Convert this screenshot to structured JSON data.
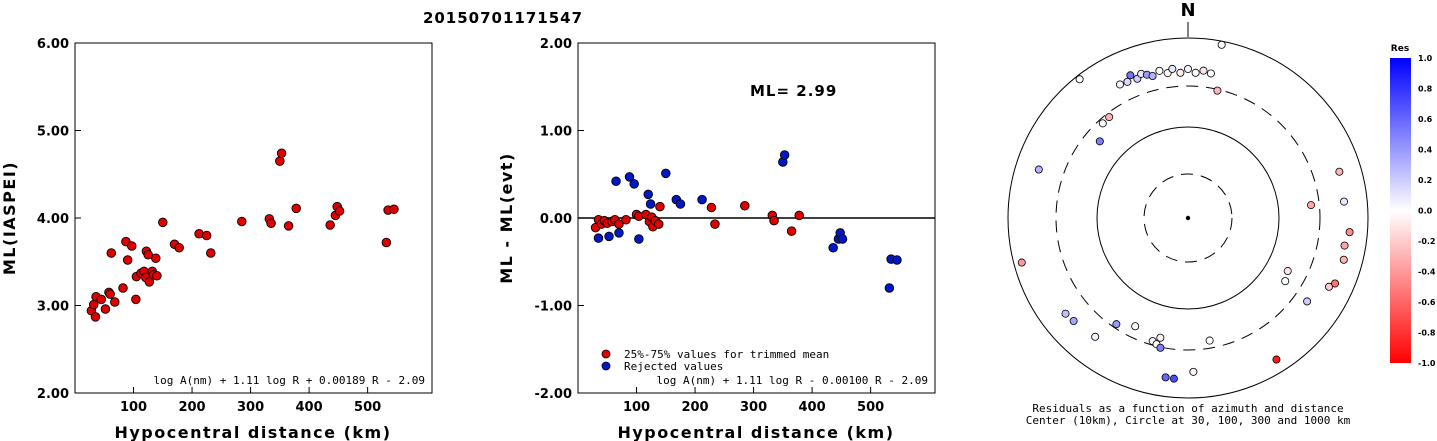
{
  "page": {
    "title": "20150701171547"
  },
  "colors": {
    "accepted": "#e00000",
    "rejected": "#0018c8"
  },
  "chart_data": [
    {
      "type": "scatter",
      "title": "",
      "xlabel": "Hypocentral distance (km)",
      "ylabel": "ML(IASPEI)",
      "xlim": [
        0,
        610
      ],
      "ylim": [
        2.0,
        6.0
      ],
      "xticks": [
        "100",
        "200",
        "300",
        "400",
        "500"
      ],
      "yticks": [
        "2.00",
        "3.00",
        "4.00",
        "5.00",
        "6.00"
      ],
      "annotation": "log A(nm) + 1.11 log R + 0.00189 R - 2.09",
      "points": [
        [
          28,
          2.94
        ],
        [
          32,
          3.01
        ],
        [
          35,
          2.87
        ],
        [
          36,
          3.1
        ],
        [
          45,
          3.07
        ],
        [
          52,
          2.96
        ],
        [
          58,
          3.15
        ],
        [
          60,
          3.13
        ],
        [
          62,
          3.6
        ],
        [
          68,
          3.04
        ],
        [
          82,
          3.2
        ],
        [
          87,
          3.73
        ],
        [
          90,
          3.52
        ],
        [
          97,
          3.68
        ],
        [
          104,
          3.07
        ],
        [
          105,
          3.33
        ],
        [
          113,
          3.37
        ],
        [
          118,
          3.39
        ],
        [
          121,
          3.32
        ],
        [
          122,
          3.62
        ],
        [
          125,
          3.58
        ],
        [
          127,
          3.27
        ],
        [
          132,
          3.39
        ],
        [
          134,
          3.35
        ],
        [
          138,
          3.54
        ],
        [
          140,
          3.34
        ],
        [
          150,
          3.95
        ],
        [
          170,
          3.7
        ],
        [
          178,
          3.66
        ],
        [
          212,
          3.82
        ],
        [
          225,
          3.8
        ],
        [
          232,
          3.6
        ],
        [
          285,
          3.96
        ],
        [
          332,
          3.99
        ],
        [
          335,
          3.94
        ],
        [
          350,
          4.65
        ],
        [
          353,
          4.74
        ],
        [
          365,
          3.91
        ],
        [
          378,
          4.11
        ],
        [
          436,
          3.92
        ],
        [
          445,
          4.03
        ],
        [
          448,
          4.13
        ],
        [
          452,
          4.08
        ],
        [
          532,
          3.72
        ],
        [
          535,
          4.09
        ],
        [
          545,
          4.1
        ]
      ]
    },
    {
      "type": "scatter",
      "title": "",
      "xlabel": "Hypocentral distance (km)",
      "ylabel": "ML - ML(evt)",
      "xlim": [
        0,
        610
      ],
      "ylim": [
        -2.0,
        2.0
      ],
      "xticks": [
        "100",
        "200",
        "300",
        "400",
        "500"
      ],
      "yticks": [
        "-2.00",
        "-1.00",
        "0.00",
        "1.00",
        "2.00"
      ],
      "ml_label": "ML= 2.99",
      "annotation": "log A(nm) + 1.11 log R - 0.00100 R - 2.09",
      "legend": [
        {
          "label": "25%-75% values for trimmed mean",
          "series": "accepted"
        },
        {
          "label": "Rejected values",
          "series": "rejected"
        }
      ],
      "series": [
        {
          "id": "accepted",
          "points": [
            [
              30,
              -0.11
            ],
            [
              35,
              -0.02
            ],
            [
              40,
              -0.07
            ],
            [
              45,
              -0.03
            ],
            [
              50,
              -0.06
            ],
            [
              58,
              -0.04
            ],
            [
              63,
              -0.02
            ],
            [
              70,
              -0.07
            ],
            [
              82,
              -0.02
            ],
            [
              100,
              0.04
            ],
            [
              104,
              0.02
            ],
            [
              116,
              0.04
            ],
            [
              122,
              -0.04
            ],
            [
              126,
              0.01
            ],
            [
              128,
              -0.1
            ],
            [
              132,
              -0.03
            ],
            [
              138,
              -0.07
            ],
            [
              140,
              0.13
            ],
            [
              228,
              0.12
            ],
            [
              234,
              -0.07
            ],
            [
              285,
              0.14
            ],
            [
              332,
              0.03
            ],
            [
              335,
              -0.03
            ],
            [
              365,
              -0.15
            ],
            [
              378,
              0.03
            ]
          ]
        },
        {
          "id": "rejected",
          "points": [
            [
              35,
              -0.23
            ],
            [
              53,
              -0.21
            ],
            [
              65,
              0.42
            ],
            [
              70,
              -0.17
            ],
            [
              88,
              0.47
            ],
            [
              96,
              0.39
            ],
            [
              104,
              -0.24
            ],
            [
              120,
              0.27
            ],
            [
              124,
              0.16
            ],
            [
              150,
              0.51
            ],
            [
              168,
              0.21
            ],
            [
              175,
              0.16
            ],
            [
              212,
              0.21
            ],
            [
              350,
              0.64
            ],
            [
              353,
              0.72
            ],
            [
              436,
              -0.34
            ],
            [
              445,
              -0.24
            ],
            [
              448,
              -0.17
            ],
            [
              452,
              -0.24
            ],
            [
              532,
              -0.8
            ],
            [
              535,
              -0.47
            ],
            [
              545,
              -0.48
            ]
          ]
        }
      ]
    },
    {
      "type": "scatter",
      "subtype": "polar-residuals",
      "north_label": "N",
      "caption_lines": [
        "Residuals as a function of azimuth and distance",
        "Center (10km), Circle at 30, 100, 300 and 1000 km"
      ],
      "colorbar": {
        "title": "Res",
        "ticks": [
          "1.0",
          "0.8",
          "0.6",
          "0.4",
          "0.2",
          "0.0",
          "-0.2",
          "-0.4",
          "-0.6",
          "-0.8",
          "-1.0"
        ],
        "range": [
          -1.0,
          1.0
        ]
      },
      "points": [
        {
          "azimuth_deg": 11,
          "distance_km": 915,
          "residual": 0.0
        },
        {
          "azimuth_deg": 322,
          "distance_km": 905,
          "residual": 0.02
        },
        {
          "azimuth_deg": 333,
          "distance_km": 470,
          "residual": 0.05
        },
        {
          "azimuth_deg": 336,
          "distance_km": 460,
          "residual": 0.15
        },
        {
          "azimuth_deg": 338,
          "distance_km": 520,
          "residual": 0.55
        },
        {
          "azimuth_deg": 340,
          "distance_km": 450,
          "residual": 0.2
        },
        {
          "azimuth_deg": 342,
          "distance_km": 490,
          "residual": 0.1
        },
        {
          "azimuth_deg": 344,
          "distance_km": 460,
          "residual": 0.4
        },
        {
          "azimuth_deg": 346,
          "distance_km": 430,
          "residual": 0.3
        },
        {
          "azimuth_deg": 349,
          "distance_km": 470,
          "residual": 0.0
        },
        {
          "azimuth_deg": 352,
          "distance_km": 430,
          "residual": -0.05
        },
        {
          "azimuth_deg": 354,
          "distance_km": 470,
          "residual": 0.1
        },
        {
          "azimuth_deg": 357,
          "distance_km": 420,
          "residual": -0.08
        },
        {
          "azimuth_deg": 360,
          "distance_km": 460,
          "residual": 0.05
        },
        {
          "azimuth_deg": 3,
          "distance_km": 420,
          "residual": 0.0
        },
        {
          "azimuth_deg": 6,
          "distance_km": 450,
          "residual": -0.1
        },
        {
          "azimuth_deg": 9,
          "distance_km": 430,
          "residual": 0.0
        },
        {
          "azimuth_deg": 13,
          "distance_km": 290,
          "residual": -0.3
        },
        {
          "azimuth_deg": 318,
          "distance_km": 265,
          "residual": 0.0
        },
        {
          "azimuth_deg": 322,
          "distance_km": 270,
          "residual": -0.3
        },
        {
          "azimuth_deg": 311,
          "distance_km": 200,
          "residual": 0.5
        },
        {
          "azimuth_deg": 288,
          "distance_km": 560,
          "residual": 0.3
        },
        {
          "azimuth_deg": 255,
          "distance_km": 820,
          "residual": -0.4
        },
        {
          "azimuth_deg": 232,
          "distance_km": 540,
          "residual": 0.25
        },
        {
          "azimuth_deg": 228,
          "distance_km": 520,
          "residual": 0.35
        },
        {
          "azimuth_deg": 218,
          "distance_km": 480,
          "residual": 0.05
        },
        {
          "azimuth_deg": 214,
          "distance_km": 270,
          "residual": 0.4
        },
        {
          "azimuth_deg": 206,
          "distance_km": 220,
          "residual": 0.0
        },
        {
          "azimuth_deg": 196,
          "distance_km": 270,
          "residual": 0.05
        },
        {
          "azimuth_deg": 193,
          "distance_km": 235,
          "residual": -0.05
        },
        {
          "azimuth_deg": 194,
          "distance_km": 285,
          "residual": 0.0
        },
        {
          "azimuth_deg": 192,
          "distance_km": 305,
          "residual": 0.5
        },
        {
          "azimuth_deg": 188,
          "distance_km": 620,
          "residual": 0.6
        },
        {
          "azimuth_deg": 185,
          "distance_km": 625,
          "residual": 0.7
        },
        {
          "azimuth_deg": 178,
          "distance_km": 520,
          "residual": -0.05
        },
        {
          "azimuth_deg": 170,
          "distance_km": 245,
          "residual": 0.0
        },
        {
          "azimuth_deg": 148,
          "distance_km": 720,
          "residual": -0.9
        },
        {
          "azimuth_deg": 125,
          "distance_km": 420,
          "residual": 0.2
        },
        {
          "azimuth_deg": 116,
          "distance_km": 560,
          "residual": -0.2
        },
        {
          "azimuth_deg": 114,
          "distance_km": 620,
          "residual": -0.55
        },
        {
          "azimuth_deg": 105,
          "distance_km": 625,
          "residual": -0.3
        },
        {
          "azimuth_deg": 100,
          "distance_km": 590,
          "residual": -0.35
        },
        {
          "azimuth_deg": 95,
          "distance_km": 640,
          "residual": -0.45
        },
        {
          "azimuth_deg": 84,
          "distance_km": 560,
          "residual": 0.1
        },
        {
          "azimuth_deg": 73,
          "distance_km": 580,
          "residual": -0.3
        },
        {
          "azimuth_deg": 84,
          "distance_km": 240,
          "residual": -0.35
        },
        {
          "azimuth_deg": 118,
          "distance_km": 180,
          "residual": -0.1
        },
        {
          "azimuth_deg": 123,
          "distance_km": 195,
          "residual": 0.0
        }
      ]
    }
  ]
}
